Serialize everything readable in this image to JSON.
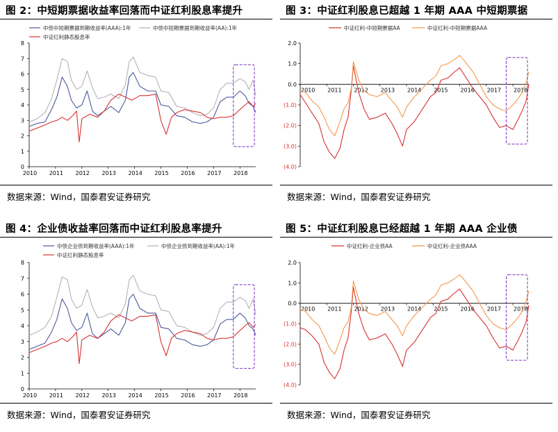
{
  "source_label": "数据来源：Wind，国泰君安证券研究",
  "colors": {
    "navy": "#4a5a9c",
    "gray": "#b3b3b8",
    "red": "#d93030",
    "orange": "#f2994a",
    "highlight": "#7a2fbf"
  },
  "chart_data": [
    {
      "id": "fig2",
      "type": "line",
      "title": "图 2：中短期票据收益率回落而中证红利股息率提升",
      "x_labels": [
        "2010",
        "2011",
        "2012",
        "2013",
        "2014",
        "2015",
        "2016",
        "2017",
        "2018"
      ],
      "xlim": [
        2010.0,
        2018.6
      ],
      "ylim": [
        0,
        8
      ],
      "yticks": [
        "0",
        "1",
        "2",
        "3",
        "4",
        "5",
        "6",
        "7",
        "8"
      ],
      "highlight_box": {
        "x": [
          2017.75,
          2018.55
        ],
        "y": [
          1.3,
          6.6
        ]
      },
      "series": [
        {
          "name": "中债中短期票据到期收益率(AAA):1年",
          "color": "#4a5a9c",
          "x": [
            2010.0,
            2010.3,
            2010.6,
            2010.85,
            2011.05,
            2011.25,
            2011.45,
            2011.6,
            2011.8,
            2012.0,
            2012.2,
            2012.4,
            2012.6,
            2012.85,
            2013.1,
            2013.4,
            2013.65,
            2013.8,
            2013.95,
            2014.2,
            2014.5,
            2014.8,
            2015.0,
            2015.3,
            2015.6,
            2015.9,
            2016.2,
            2016.5,
            2016.75,
            2017.0,
            2017.25,
            2017.5,
            2017.75,
            2018.0,
            2018.2,
            2018.35,
            2018.5,
            2018.6
          ],
          "y": [
            2.6,
            2.8,
            2.9,
            3.7,
            4.5,
            5.8,
            5.2,
            4.3,
            3.8,
            4.0,
            4.9,
            3.6,
            3.3,
            3.6,
            3.9,
            3.5,
            4.3,
            5.8,
            6.1,
            5.2,
            4.9,
            4.9,
            4.0,
            3.9,
            3.3,
            3.2,
            2.9,
            2.8,
            2.9,
            3.2,
            4.2,
            4.5,
            4.5,
            4.9,
            4.6,
            4.1,
            3.9,
            3.5
          ]
        },
        {
          "name": "中债中短期票据到期收益率(AA):1年",
          "color": "#b3b3b8",
          "x": [
            2010.0,
            2010.3,
            2010.6,
            2010.85,
            2011.05,
            2011.25,
            2011.45,
            2011.6,
            2011.8,
            2012.0,
            2012.2,
            2012.4,
            2012.6,
            2012.85,
            2013.1,
            2013.4,
            2013.65,
            2013.8,
            2013.95,
            2014.2,
            2014.5,
            2014.8,
            2015.0,
            2015.3,
            2015.6,
            2015.9,
            2016.2,
            2016.5,
            2016.75,
            2017.0,
            2017.25,
            2017.5,
            2017.75,
            2018.0,
            2018.2,
            2018.35,
            2018.5,
            2018.6
          ],
          "y": [
            2.9,
            3.1,
            3.5,
            4.4,
            5.6,
            7.0,
            6.8,
            5.6,
            5.0,
            5.2,
            6.2,
            5.1,
            4.4,
            4.5,
            4.7,
            4.4,
            5.3,
            6.8,
            7.1,
            6.1,
            5.9,
            5.8,
            4.9,
            4.8,
            3.9,
            3.8,
            3.5,
            3.3,
            3.4,
            3.8,
            5.0,
            5.4,
            5.4,
            5.7,
            5.5,
            5.0,
            5.6,
            4.6
          ]
        },
        {
          "name": "中证红利静态股息率",
          "color": "#d93030",
          "x": [
            2010.0,
            2010.3,
            2010.6,
            2010.85,
            2011.05,
            2011.25,
            2011.45,
            2011.65,
            2011.8,
            2011.9,
            2012.0,
            2012.3,
            2012.6,
            2012.85,
            2013.1,
            2013.4,
            2013.65,
            2013.9,
            2014.2,
            2014.5,
            2014.8,
            2015.0,
            2015.2,
            2015.4,
            2015.6,
            2015.9,
            2016.2,
            2016.5,
            2016.75,
            2017.0,
            2017.25,
            2017.5,
            2017.75,
            2018.0,
            2018.2,
            2018.35,
            2018.5,
            2018.6
          ],
          "y": [
            2.3,
            2.5,
            2.7,
            2.9,
            3.0,
            3.2,
            3.0,
            3.3,
            3.6,
            1.6,
            3.1,
            3.4,
            3.2,
            3.6,
            4.3,
            4.7,
            4.5,
            4.3,
            4.6,
            4.6,
            4.7,
            3.0,
            2.1,
            3.2,
            3.5,
            3.7,
            3.6,
            3.5,
            3.2,
            3.1,
            3.2,
            3.2,
            3.3,
            3.7,
            4.0,
            4.2,
            3.9,
            4.1
          ]
        }
      ]
    },
    {
      "id": "fig3",
      "type": "line",
      "title": "图 3：中证红利股息已超越 1 年期 AAA 中短期票据",
      "x_labels": [
        "2010",
        "2011",
        "2012",
        "2013",
        "2014",
        "2015",
        "2016",
        "2017",
        "2018"
      ],
      "xlim": [
        2010.0,
        2018.6
      ],
      "ylim": [
        -4.0,
        2.0
      ],
      "yticks": [
        "2.0",
        "1.0",
        "0.0",
        "(1.0)",
        "(2.0)",
        "(3.0)",
        "(4.0)"
      ],
      "highlight_box": {
        "x": [
          2017.75,
          2018.55
        ],
        "y": [
          -2.9,
          1.3
        ]
      },
      "series": [
        {
          "name": "中证红利-中短期票据AA",
          "color": "#d93030",
          "x": [
            2010.0,
            2010.2,
            2010.45,
            2010.7,
            2010.9,
            2011.1,
            2011.3,
            2011.5,
            2011.65,
            2011.8,
            2011.92,
            2012.0,
            2012.2,
            2012.4,
            2012.6,
            2012.9,
            2013.2,
            2013.45,
            2013.65,
            2013.85,
            2014.0,
            2014.3,
            2014.6,
            2014.9,
            2015.1,
            2015.3,
            2015.55,
            2015.8,
            2016.0,
            2016.2,
            2016.5,
            2016.75,
            2017.0,
            2017.25,
            2017.5,
            2017.75,
            2018.0,
            2018.2,
            2018.35,
            2018.5,
            2018.6
          ],
          "y": [
            -0.5,
            -0.9,
            -1.4,
            -1.9,
            -2.8,
            -3.3,
            -3.6,
            -3.1,
            -2.2,
            -1.6,
            -0.3,
            0.9,
            -0.4,
            -1.2,
            -1.7,
            -1.6,
            -1.4,
            -1.9,
            -2.4,
            -3.0,
            -2.2,
            -1.8,
            -1.2,
            -0.6,
            -0.4,
            0.2,
            0.3,
            0.6,
            0.8,
            0.4,
            -0.2,
            -0.6,
            -1.0,
            -1.6,
            -2.1,
            -2.0,
            -2.2,
            -1.7,
            -1.3,
            -0.8,
            0.0
          ]
        },
        {
          "name": "中证红利-中短期票据AAA",
          "color": "#f2994a",
          "x": [
            2010.0,
            2010.2,
            2010.45,
            2010.7,
            2010.9,
            2011.1,
            2011.3,
            2011.5,
            2011.65,
            2011.8,
            2011.92,
            2012.0,
            2012.2,
            2012.4,
            2012.6,
            2012.9,
            2013.2,
            2013.45,
            2013.65,
            2013.85,
            2014.0,
            2014.3,
            2014.6,
            2014.9,
            2015.1,
            2015.3,
            2015.55,
            2015.8,
            2016.0,
            2016.2,
            2016.5,
            2016.75,
            2017.0,
            2017.25,
            2017.5,
            2017.75,
            2018.0,
            2018.2,
            2018.35,
            2018.5,
            2018.6
          ],
          "y": [
            -0.3,
            -0.4,
            -0.8,
            -1.1,
            -1.6,
            -2.2,
            -2.5,
            -1.8,
            -1.2,
            -0.9,
            -0.2,
            1.1,
            0.2,
            -0.3,
            -0.5,
            -0.6,
            -0.4,
            -0.8,
            -1.1,
            -1.6,
            -1.1,
            -0.6,
            -0.2,
            0.2,
            0.4,
            0.9,
            1.0,
            1.2,
            1.4,
            1.1,
            0.6,
            0.0,
            -0.6,
            -1.0,
            -1.2,
            -1.3,
            -1.0,
            -0.7,
            -0.4,
            0.1,
            0.6
          ]
        }
      ]
    },
    {
      "id": "fig4",
      "type": "line",
      "title": "图 4：企业债收益率回落而中证红利股息率提升",
      "x_labels": [
        "2010",
        "2011",
        "2012",
        "2013",
        "2014",
        "2015",
        "2016",
        "2017",
        "2018"
      ],
      "xlim": [
        2010.0,
        2018.6
      ],
      "ylim": [
        0,
        8
      ],
      "yticks": [
        "0",
        "1",
        "2",
        "3",
        "4",
        "5",
        "6",
        "7",
        "8"
      ],
      "highlight_box": {
        "x": [
          2017.75,
          2018.55
        ],
        "y": [
          1.3,
          6.6
        ]
      },
      "series": [
        {
          "name": "中债企业债到期收益率(AAA):1年",
          "color": "#4a5a9c",
          "x": [
            2010.0,
            2010.3,
            2010.6,
            2010.85,
            2011.05,
            2011.25,
            2011.45,
            2011.6,
            2011.8,
            2012.0,
            2012.2,
            2012.4,
            2012.6,
            2012.85,
            2013.1,
            2013.4,
            2013.65,
            2013.8,
            2013.95,
            2014.2,
            2014.5,
            2014.8,
            2015.0,
            2015.3,
            2015.6,
            2015.9,
            2016.2,
            2016.5,
            2016.75,
            2017.0,
            2017.25,
            2017.5,
            2017.75,
            2018.0,
            2018.2,
            2018.35,
            2018.5,
            2018.6
          ],
          "y": [
            2.5,
            2.7,
            2.9,
            3.6,
            4.4,
            5.7,
            5.1,
            4.2,
            3.7,
            3.9,
            4.8,
            3.5,
            3.2,
            3.5,
            3.8,
            3.4,
            4.2,
            5.7,
            6.0,
            5.1,
            4.8,
            4.8,
            3.9,
            3.8,
            3.2,
            3.1,
            2.8,
            2.7,
            2.8,
            3.1,
            4.1,
            4.4,
            4.4,
            4.8,
            4.5,
            4.0,
            3.8,
            3.4
          ]
        },
        {
          "name": "中债企业债到期收益率(AA):1年",
          "color": "#b3b3b8",
          "x": [
            2010.0,
            2010.3,
            2010.6,
            2010.85,
            2011.05,
            2011.25,
            2011.45,
            2011.6,
            2011.8,
            2012.0,
            2012.2,
            2012.4,
            2012.6,
            2012.85,
            2013.1,
            2013.4,
            2013.65,
            2013.8,
            2013.95,
            2014.2,
            2014.5,
            2014.8,
            2015.0,
            2015.3,
            2015.6,
            2015.9,
            2016.2,
            2016.5,
            2016.75,
            2017.0,
            2017.25,
            2017.5,
            2017.75,
            2018.0,
            2018.2,
            2018.35,
            2018.5,
            2018.6
          ],
          "y": [
            3.4,
            3.6,
            3.9,
            4.6,
            5.8,
            7.1,
            6.9,
            5.7,
            5.1,
            5.3,
            6.3,
            5.2,
            4.5,
            4.6,
            4.8,
            4.5,
            5.4,
            6.9,
            7.2,
            6.2,
            6.0,
            5.9,
            5.0,
            4.9,
            4.0,
            3.9,
            3.6,
            3.4,
            3.5,
            3.9,
            5.1,
            5.5,
            5.5,
            5.8,
            5.6,
            5.1,
            5.7,
            4.7
          ]
        },
        {
          "name": "中证红利静态股息率",
          "color": "#d93030",
          "x": [
            2010.0,
            2010.3,
            2010.6,
            2010.85,
            2011.05,
            2011.25,
            2011.45,
            2011.65,
            2011.8,
            2011.9,
            2012.0,
            2012.3,
            2012.6,
            2012.85,
            2013.1,
            2013.4,
            2013.65,
            2013.9,
            2014.2,
            2014.5,
            2014.8,
            2015.0,
            2015.2,
            2015.4,
            2015.6,
            2015.9,
            2016.2,
            2016.5,
            2016.75,
            2017.0,
            2017.25,
            2017.5,
            2017.75,
            2018.0,
            2018.2,
            2018.35,
            2018.5,
            2018.6
          ],
          "y": [
            2.3,
            2.5,
            2.7,
            2.9,
            3.0,
            3.2,
            3.0,
            3.3,
            3.6,
            1.6,
            3.1,
            3.4,
            3.2,
            3.6,
            4.3,
            4.7,
            4.5,
            4.3,
            4.6,
            4.6,
            4.7,
            3.0,
            2.1,
            3.2,
            3.5,
            3.7,
            3.6,
            3.5,
            3.2,
            3.1,
            3.2,
            3.2,
            3.3,
            3.7,
            4.0,
            4.2,
            3.9,
            4.1
          ]
        }
      ]
    },
    {
      "id": "fig5",
      "type": "line",
      "title": "图 5：中证红利股息已经超越 1 年期 AAA 企业债",
      "x_labels": [
        "2010",
        "2011",
        "2012",
        "2013",
        "2014",
        "2015",
        "2016",
        "2017",
        "2018"
      ],
      "xlim": [
        2010.0,
        2018.6
      ],
      "ylim": [
        -4.0,
        2.0
      ],
      "yticks": [
        "2.0",
        "1.0",
        "0.0",
        "(1.0)",
        "(2.0)",
        "(3.0)",
        "(4.0)"
      ],
      "highlight_box": {
        "x": [
          2017.75,
          2018.55
        ],
        "y": [
          -2.8,
          1.4
        ]
      },
      "series": [
        {
          "name": "中证红利-企业债AA",
          "color": "#d93030",
          "x": [
            2010.0,
            2010.2,
            2010.45,
            2010.7,
            2010.9,
            2011.1,
            2011.3,
            2011.5,
            2011.65,
            2011.8,
            2011.92,
            2012.0,
            2012.2,
            2012.4,
            2012.6,
            2012.9,
            2013.2,
            2013.45,
            2013.65,
            2013.85,
            2014.0,
            2014.3,
            2014.6,
            2014.9,
            2015.1,
            2015.3,
            2015.55,
            2015.8,
            2016.0,
            2016.2,
            2016.5,
            2016.75,
            2017.0,
            2017.25,
            2017.5,
            2017.75,
            2018.0,
            2018.2,
            2018.35,
            2018.5,
            2018.6
          ],
          "y": [
            -1.2,
            -1.3,
            -1.6,
            -2.0,
            -2.9,
            -3.4,
            -3.7,
            -3.2,
            -2.3,
            -1.7,
            -0.4,
            0.8,
            -0.5,
            -1.3,
            -1.8,
            -1.7,
            -1.5,
            -2.0,
            -2.5,
            -3.1,
            -2.3,
            -1.9,
            -1.3,
            -0.7,
            -0.5,
            0.1,
            0.2,
            0.5,
            0.7,
            0.3,
            -0.3,
            -0.7,
            -1.1,
            -1.7,
            -2.2,
            -2.1,
            -2.3,
            -1.8,
            -1.4,
            -0.9,
            -0.1
          ]
        },
        {
          "name": "中证红利-企业债AAA",
          "color": "#f2994a",
          "x": [
            2010.0,
            2010.2,
            2010.45,
            2010.7,
            2010.9,
            2011.1,
            2011.3,
            2011.5,
            2011.65,
            2011.8,
            2011.92,
            2012.0,
            2012.2,
            2012.4,
            2012.6,
            2012.9,
            2013.2,
            2013.45,
            2013.65,
            2013.85,
            2014.0,
            2014.3,
            2014.6,
            2014.9,
            2015.1,
            2015.3,
            2015.55,
            2015.8,
            2016.0,
            2016.2,
            2016.5,
            2016.75,
            2017.0,
            2017.25,
            2017.5,
            2017.75,
            2018.0,
            2018.2,
            2018.35,
            2018.5,
            2018.6
          ],
          "y": [
            -0.3,
            -0.4,
            -0.8,
            -1.1,
            -1.6,
            -2.2,
            -2.5,
            -1.8,
            -1.2,
            -0.9,
            -0.2,
            1.1,
            0.2,
            -0.3,
            -0.5,
            -0.6,
            -0.4,
            -0.8,
            -1.1,
            -1.6,
            -1.1,
            -0.6,
            -0.2,
            0.2,
            0.4,
            0.9,
            1.0,
            1.2,
            1.4,
            1.1,
            0.6,
            0.0,
            -0.6,
            -1.0,
            -1.2,
            -1.3,
            -1.0,
            -0.7,
            -0.4,
            0.1,
            0.6
          ]
        }
      ]
    }
  ]
}
